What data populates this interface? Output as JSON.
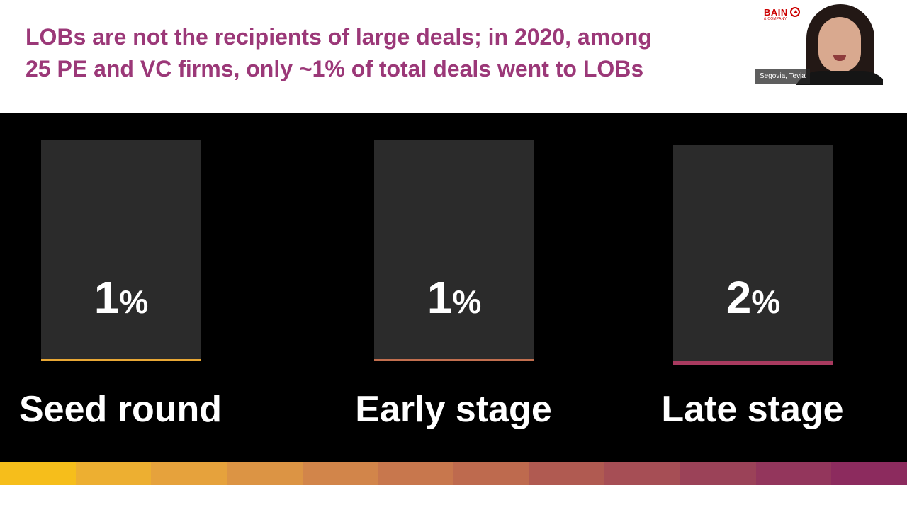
{
  "slide": {
    "title": "LOBs are not the recipients of large deals; in 2020, among\n25 PE and VC firms, only ~1% of total deals went to LOBs",
    "title_color": "#9b3878"
  },
  "video": {
    "brand_name": "BAIN",
    "brand_sub": "& COMPANY",
    "participant_name": "Segovia, Tevia"
  },
  "cards": [
    {
      "value": "1",
      "unit": "%",
      "label": "Seed round",
      "accent": "#e8a735",
      "share": 1
    },
    {
      "value": "1",
      "unit": "%",
      "label": "Early stage",
      "accent": "#c26f4f",
      "share": 1
    },
    {
      "value": "2",
      "unit": "%",
      "label": "Late stage",
      "accent": "#a83a5f",
      "share": 2
    }
  ],
  "chart_data": {
    "type": "bar",
    "categories": [
      "Seed round",
      "Early stage",
      "Late stage"
    ],
    "values": [
      1,
      1,
      2
    ],
    "title": "",
    "ylabel": "",
    "unit": "%"
  },
  "gradient_colors": [
    "#f6be1b",
    "#edaf31",
    "#e6a23c",
    "#dc9444",
    "#d2854a",
    "#c8774d",
    "#be6a4e",
    "#b05a51",
    "#a64e55",
    "#9b4258",
    "#93365c",
    "#8c2b5e"
  ]
}
